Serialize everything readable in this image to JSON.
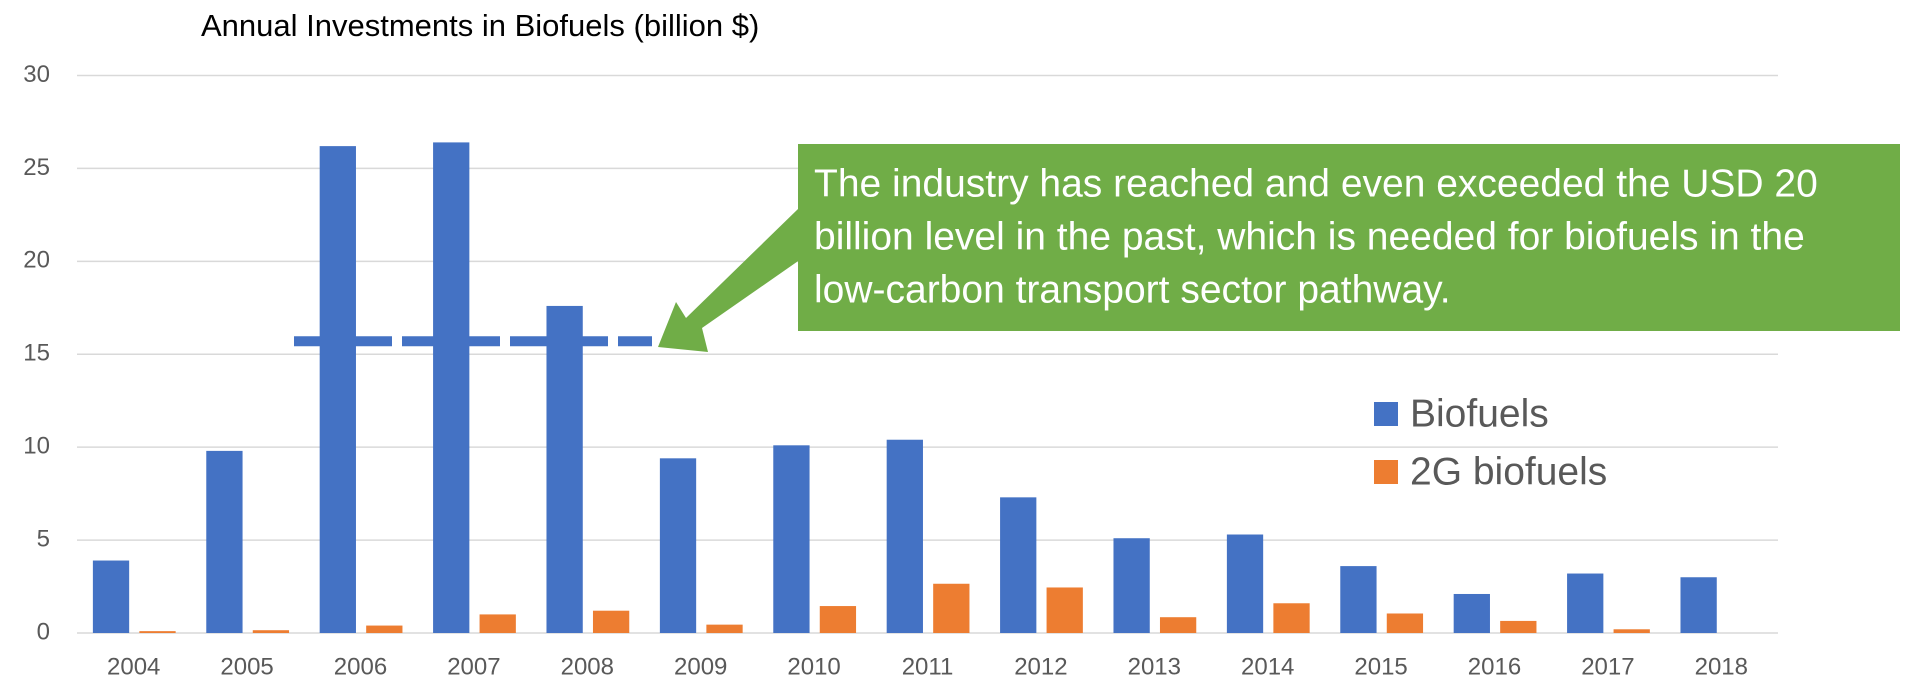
{
  "chart_data": {
    "type": "bar",
    "title": "Annual Investments in Biofuels (billion $)",
    "categories": [
      "2004",
      "2005",
      "2006",
      "2007",
      "2008",
      "2009",
      "2010",
      "2011",
      "2012",
      "2013",
      "2014",
      "2015",
      "2016",
      "2017",
      "2018"
    ],
    "series": [
      {
        "name": "Biofuels",
        "color": "#4472c4",
        "values": [
          3.9,
          9.8,
          26.2,
          26.4,
          17.6,
          9.4,
          10.1,
          10.4,
          7.3,
          5.1,
          5.3,
          3.6,
          2.1,
          3.2,
          3.0
        ]
      },
      {
        "name": "2G biofuels",
        "color": "#ed7d31",
        "values": [
          0.1,
          0.15,
          0.4,
          1.0,
          1.2,
          0.45,
          1.45,
          2.65,
          2.45,
          0.85,
          1.6,
          1.05,
          0.65,
          0.2,
          0
        ]
      }
    ],
    "ylim": [
      0,
      30
    ],
    "yticks": [
      0,
      5,
      10,
      15,
      20,
      25,
      30
    ],
    "grid": true,
    "reference_line": {
      "value": 15.7,
      "color": "#4472c4"
    },
    "annotation": {
      "lines": [
        "The industry has reached and even exceeded the USD 20",
        "billion level in the past, which is needed for biofuels in the",
        "low-carbon transport sector pathway."
      ],
      "color": "#70ad47"
    },
    "legend": "right"
  }
}
